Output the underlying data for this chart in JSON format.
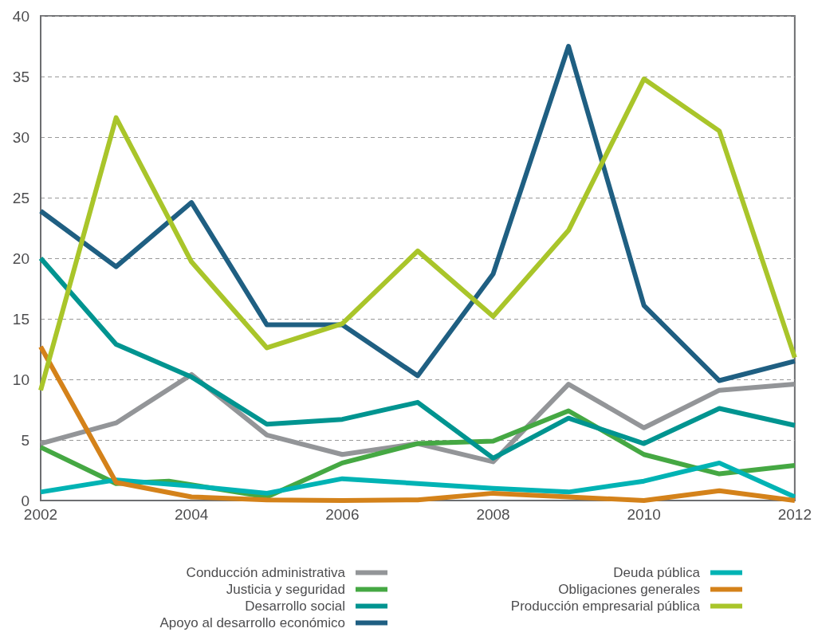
{
  "chart_data": {
    "type": "line",
    "x": [
      2002,
      2003,
      2004,
      2005,
      2006,
      2007,
      2008,
      2009,
      2010,
      2011,
      2012
    ],
    "series": [
      {
        "name": "Conducción administrativa",
        "color": "#939598",
        "values": [
          4.7,
          6.4,
          10.4,
          5.4,
          3.8,
          4.7,
          3.2,
          9.6,
          6.0,
          9.1,
          9.6
        ]
      },
      {
        "name": "Justicia y seguridad",
        "color": "#45a843",
        "x": [
          2002,
          2003,
          2003.7,
          2005,
          2006,
          2007,
          2008,
          2009,
          2010,
          2011,
          2012
        ],
        "values": [
          4.4,
          1.4,
          1.6,
          0.3,
          3.1,
          4.7,
          4.9,
          7.4,
          3.8,
          2.2,
          2.9
        ]
      },
      {
        "name": "Desarrollo social",
        "color": "#009490",
        "values": [
          20.0,
          12.9,
          10.2,
          6.3,
          6.7,
          8.1,
          3.5,
          6.8,
          4.7,
          7.6,
          6.2
        ]
      },
      {
        "name": "Apoyo al desarrollo económico",
        "color": "#1f5f82",
        "values": [
          23.9,
          19.3,
          24.6,
          14.5,
          14.5,
          10.3,
          18.7,
          37.5,
          16.1,
          9.9,
          11.5
        ]
      },
      {
        "name": "Deuda pública",
        "color": "#00b3b4",
        "values": [
          0.7,
          1.7,
          1.2,
          0.6,
          1.8,
          1.4,
          1.0,
          0.7,
          1.6,
          3.1,
          0.3
        ]
      },
      {
        "name": "Obligaciones generales",
        "color": "#d4821a",
        "values": [
          12.7,
          1.5,
          0.3,
          0.05,
          0,
          0.05,
          0.6,
          0.3,
          0,
          0.8,
          0
        ]
      },
      {
        "name": "Producción empresarial pública",
        "color": "#a9c52a",
        "values": [
          9.1,
          31.6,
          19.7,
          12.6,
          14.6,
          20.6,
          15.2,
          22.3,
          34.8,
          30.5,
          11.8
        ]
      }
    ],
    "xlim": [
      2002,
      2012
    ],
    "xticks": [
      2002,
      2004,
      2006,
      2008,
      2010,
      2012
    ],
    "ylim": [
      0,
      40
    ],
    "yticks": [
      0,
      5,
      10,
      15,
      20,
      25,
      30,
      35,
      40
    ],
    "grid": "y",
    "legend": "bottom",
    "marker": "none",
    "line_style": "solid"
  }
}
